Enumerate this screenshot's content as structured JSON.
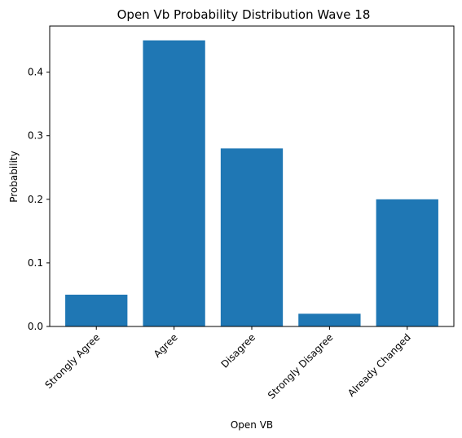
{
  "chart_data": {
    "type": "bar",
    "title": "Open Vb Probability Distribution Wave 18",
    "xlabel": "Open VB",
    "ylabel": "Probability",
    "categories": [
      "Strongly Agree",
      "Agree",
      "Disagree",
      "Strongly Disagree",
      "Already Changed"
    ],
    "values": [
      0.05,
      0.45,
      0.28,
      0.02,
      0.2
    ],
    "ylim": [
      0,
      0.4725
    ],
    "yticks": [
      "0.0",
      "0.1",
      "0.2",
      "0.3",
      "0.4"
    ],
    "bar_color": "#1f77b4",
    "grid": false,
    "legend": false
  }
}
